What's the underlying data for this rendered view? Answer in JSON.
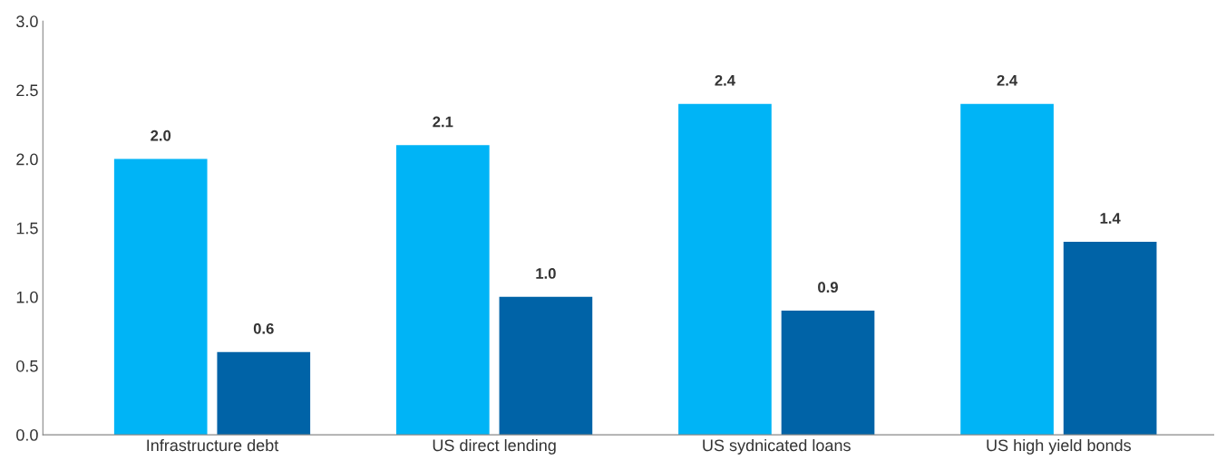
{
  "chart_data": {
    "type": "bar",
    "categories": [
      "Infrastructure debt",
      "US direct lending",
      "US sydnicated loans",
      "US high yield bonds"
    ],
    "series": [
      {
        "color": "#00b4f6",
        "values": [
          2.0,
          2.1,
          2.4,
          2.4
        ],
        "value_labels": [
          "2.0",
          "2.1",
          "2.4",
          "2.4"
        ]
      },
      {
        "color": "#0063a7",
        "values": [
          0.6,
          1.0,
          0.9,
          1.4
        ],
        "value_labels": [
          "0.6",
          "1.0",
          "0.9",
          "1.4"
        ]
      }
    ],
    "ylim": [
      0,
      3.0
    ],
    "yticks": [
      {
        "value": 0,
        "label": "0.0"
      },
      {
        "value": 0.5,
        "label": "0.5"
      },
      {
        "value": 1.0,
        "label": "1.0"
      },
      {
        "value": 1.5,
        "label": "1.5"
      },
      {
        "value": 2.0,
        "label": "2.0"
      },
      {
        "value": 2.5,
        "label": "2.5"
      },
      {
        "value": 3.0,
        "label": "3.0"
      }
    ],
    "grid": false,
    "legend": false
  }
}
